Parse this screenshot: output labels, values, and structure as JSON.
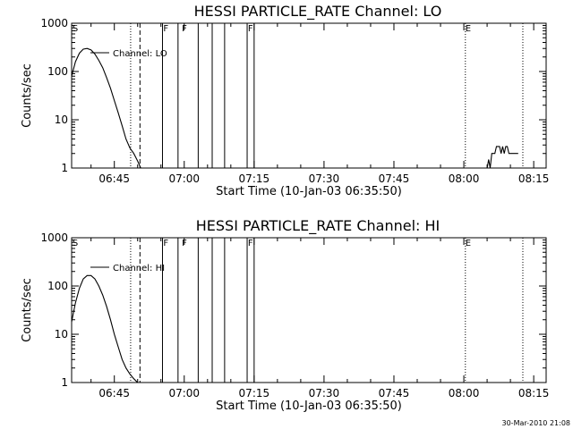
{
  "footer": {
    "timestamp": "30-Mar-2010 21:08"
  },
  "chart_data": [
    {
      "type": "line",
      "title": "HESSI PARTICLE_RATE Channel: LO",
      "xlabel": "Start Time (10-Jan-03 06:35:50)",
      "ylabel": "Counts/sec",
      "yscale": "log",
      "ylim": [
        1,
        1000
      ],
      "yticks": [
        1,
        10,
        100,
        1000
      ],
      "ytick_labels": [
        "1",
        "10",
        "100",
        "1000"
      ],
      "xlim": [
        "06:35:50",
        "08:17:40"
      ],
      "xticks": [
        "06:45",
        "07:00",
        "07:15",
        "07:30",
        "07:45",
        "08:00",
        "08:15"
      ],
      "legend": "Channel: LO",
      "flag_letters": [
        {
          "time": "06:36:00",
          "text": "S"
        },
        {
          "time": "06:55:30",
          "text": "F"
        },
        {
          "time": "06:59:30",
          "text": "F"
        },
        {
          "time": "07:13:40",
          "text": "F"
        },
        {
          "time": "08:00:20",
          "text": "E"
        }
      ],
      "dotted_lines": [
        "06:48:30",
        "08:00:20",
        "08:12:40"
      ],
      "dashed_lines": [
        "06:50:30"
      ],
      "solid_lines": [
        "06:55:20",
        "06:58:40",
        "07:03:00",
        "07:06:00",
        "07:08:40",
        "07:13:30",
        "07:15:00"
      ],
      "series": [
        {
          "x": [
            "06:35:50",
            "06:36:40",
            "06:37:30",
            "06:38:20",
            "06:39:10",
            "06:40:00",
            "06:40:50",
            "06:41:40",
            "06:42:30",
            "06:43:20",
            "06:44:10",
            "06:45:00",
            "06:45:50",
            "06:46:40",
            "06:47:30",
            "06:48:20",
            "06:49:10",
            "06:50:00",
            "06:50:40"
          ],
          "y": [
            80,
            160,
            240,
            290,
            300,
            280,
            230,
            170,
            120,
            75,
            45,
            25,
            14,
            7.5,
            4,
            2.6,
            2.0,
            1.4,
            1.0
          ]
        },
        {
          "x": [
            "08:05:00",
            "08:05:20",
            "08:05:40",
            "08:06:00",
            "08:06:20",
            "08:06:40",
            "08:07:00",
            "08:07:20",
            "08:07:40",
            "08:08:00",
            "08:08:20",
            "08:08:40",
            "08:09:00",
            "08:09:20",
            "08:09:40",
            "08:10:00",
            "08:11:00",
            "08:11:40"
          ],
          "y": [
            1,
            1.5,
            1,
            2,
            2,
            2,
            2.8,
            2.8,
            2.8,
            2,
            2.8,
            2,
            2.8,
            2.8,
            2,
            2,
            2,
            2
          ]
        }
      ]
    },
    {
      "type": "line",
      "title": "HESSI PARTICLE_RATE Channel: HI",
      "xlabel": "Start Time (10-Jan-03 06:35:50)",
      "ylabel": "Counts/sec",
      "yscale": "log",
      "ylim": [
        1,
        1000
      ],
      "yticks": [
        1,
        10,
        100,
        1000
      ],
      "ytick_labels": [
        "1",
        "10",
        "100",
        "1000"
      ],
      "xlim": [
        "06:35:50",
        "08:17:40"
      ],
      "xticks": [
        "06:45",
        "07:00",
        "07:15",
        "07:30",
        "07:45",
        "08:00",
        "08:15"
      ],
      "legend": "Channel: HI",
      "flag_letters": [
        {
          "time": "06:36:00",
          "text": "S"
        },
        {
          "time": "06:55:30",
          "text": "F"
        },
        {
          "time": "06:59:30",
          "text": "F"
        },
        {
          "time": "07:13:40",
          "text": "F"
        },
        {
          "time": "08:00:20",
          "text": "E"
        }
      ],
      "dotted_lines": [
        "06:48:30",
        "08:00:20",
        "08:12:40"
      ],
      "dashed_lines": [
        "06:50:30"
      ],
      "solid_lines": [
        "06:55:20",
        "06:58:40",
        "07:03:00",
        "07:06:00",
        "07:08:40",
        "07:13:30",
        "07:15:00"
      ],
      "series": [
        {
          "x": [
            "06:35:50",
            "06:36:40",
            "06:37:30",
            "06:38:20",
            "06:39:10",
            "06:40:00",
            "06:40:50",
            "06:41:40",
            "06:42:30",
            "06:43:20",
            "06:44:10",
            "06:45:00",
            "06:45:50",
            "06:46:40",
            "06:47:30",
            "06:48:20",
            "06:49:10",
            "06:50:00"
          ],
          "y": [
            18,
            45,
            90,
            140,
            165,
            165,
            140,
            100,
            65,
            38,
            20,
            10,
            5.5,
            3,
            2,
            1.5,
            1.2,
            1.0
          ]
        }
      ]
    }
  ]
}
